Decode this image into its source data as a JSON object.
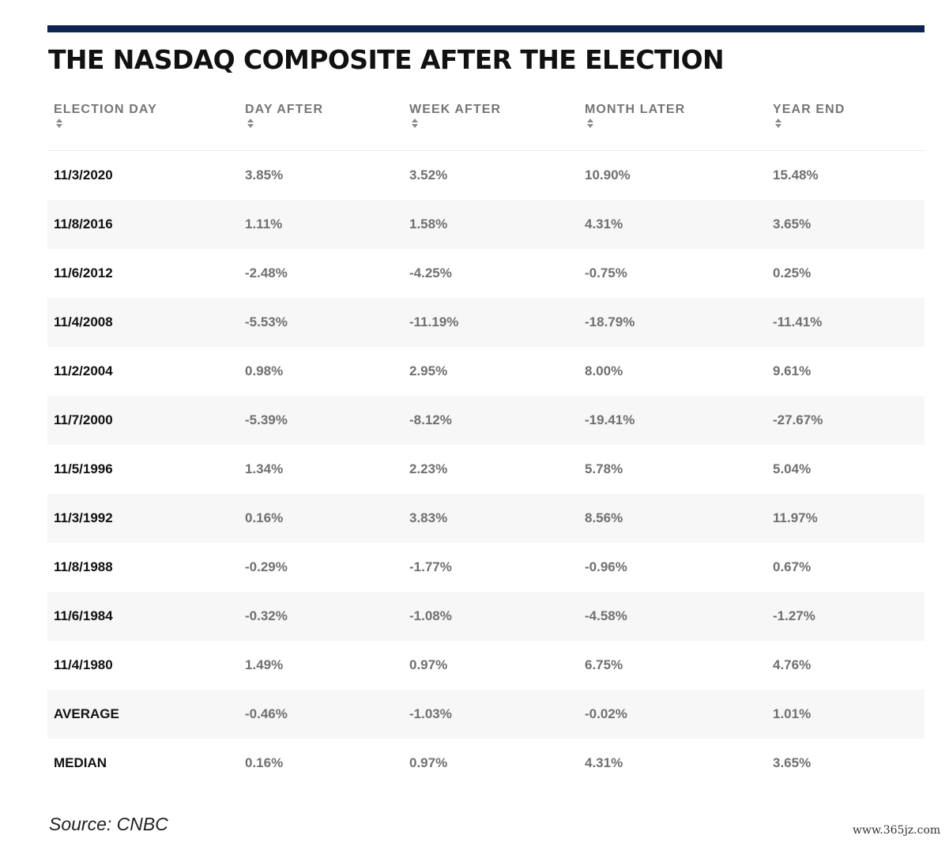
{
  "colors": {
    "accent_bar": "#0d2452",
    "alt_row": "#f7f7f7"
  },
  "title": "THE NASDAQ COMPOSITE AFTER THE ELECTION",
  "chart_data": {
    "type": "table",
    "title": "THE NASDAQ COMPOSITE AFTER THE ELECTION",
    "columns": [
      "ELECTION DAY",
      "DAY AFTER",
      "WEEK AFTER",
      "MONTH LATER",
      "YEAR END"
    ],
    "rows": [
      [
        "11/3/2020",
        "3.85%",
        "3.52%",
        "10.90%",
        "15.48%"
      ],
      [
        "11/8/2016",
        "1.11%",
        "1.58%",
        "4.31%",
        "3.65%"
      ],
      [
        "11/6/2012",
        "-2.48%",
        "-4.25%",
        "-0.75%",
        "0.25%"
      ],
      [
        "11/4/2008",
        "-5.53%",
        "-11.19%",
        "-18.79%",
        "-11.41%"
      ],
      [
        "11/2/2004",
        "0.98%",
        "2.95%",
        "8.00%",
        "9.61%"
      ],
      [
        "11/7/2000",
        "-5.39%",
        "-8.12%",
        "-19.41%",
        "-27.67%"
      ],
      [
        "11/5/1996",
        "1.34%",
        "2.23%",
        "5.78%",
        "5.04%"
      ],
      [
        "11/3/1992",
        "0.16%",
        "3.83%",
        "8.56%",
        "11.97%"
      ],
      [
        "11/8/1988",
        "-0.29%",
        "-1.77%",
        "-0.96%",
        "0.67%"
      ],
      [
        "11/6/1984",
        "-0.32%",
        "-1.08%",
        "-4.58%",
        "-1.27%"
      ],
      [
        "11/4/1980",
        "1.49%",
        "0.97%",
        "6.75%",
        "4.76%"
      ],
      [
        "AVERAGE",
        "-0.46%",
        "-1.03%",
        "-0.02%",
        "1.01%"
      ],
      [
        "MEDIAN",
        "0.16%",
        "0.97%",
        "4.31%",
        "3.65%"
      ]
    ]
  },
  "source": "Source: CNBC",
  "watermark": "www.365jz.com"
}
